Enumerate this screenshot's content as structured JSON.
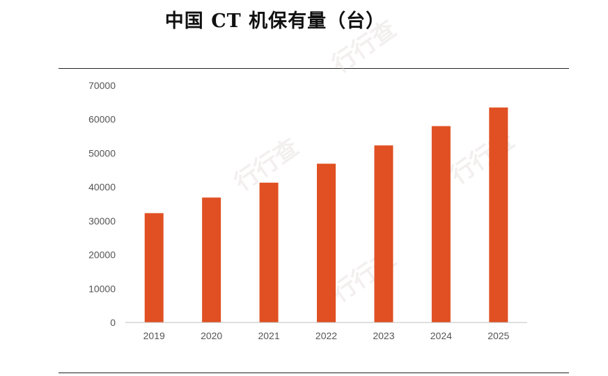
{
  "title": "中国 CT 机保有量（台）",
  "watermark_text": "行行查",
  "chart_data": {
    "type": "bar",
    "title": "中国 CT 机保有量（台）",
    "categories": [
      "2019",
      "2020",
      "2021",
      "2022",
      "2023",
      "2024",
      "2025"
    ],
    "series": [
      {
        "values": [
          32300,
          36900,
          41300,
          46900,
          52300,
          58000,
          63500
        ]
      }
    ],
    "ylim": [
      0,
      70000
    ],
    "yticks": [
      0,
      10000,
      20000,
      30000,
      40000,
      50000,
      60000,
      70000
    ],
    "grid": false,
    "bar_color": "#e05022",
    "axis_color": "#bfbfbf"
  }
}
